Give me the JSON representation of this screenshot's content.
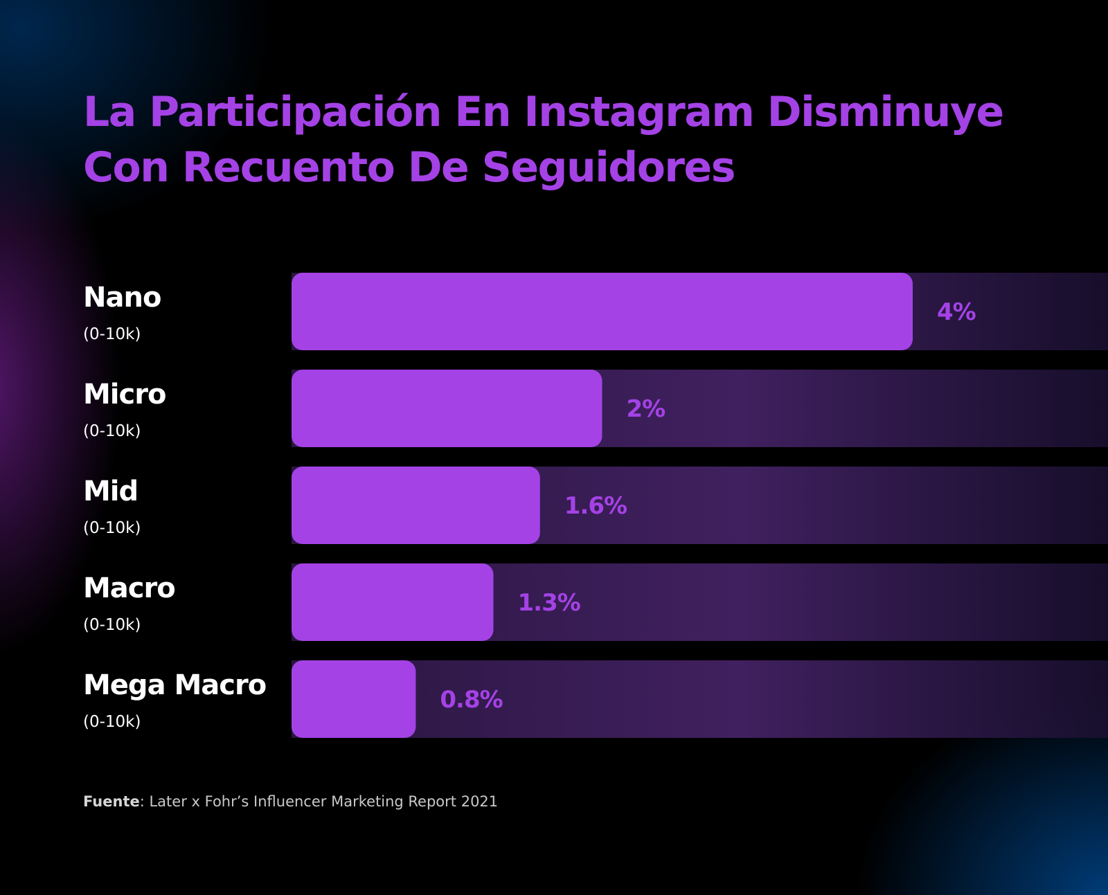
{
  "title_lines": [
    "La Participación En Instagram Disminuye",
    "Con Recuento De Seguidores"
  ],
  "source": {
    "label": "Fuente",
    "text": ": Later x Fohr’s Influencer Marketing Report 2021"
  },
  "colors": {
    "accent": "#a442e6",
    "track": "#3d1f5e",
    "label": "#ffffff"
  },
  "chart_data": {
    "type": "bar",
    "orientation": "horizontal",
    "title": "La Participación En Instagram Disminuye Con Recuento De Seguidores",
    "categories": [
      "Nano",
      "Micro",
      "Mid",
      "Macro",
      "Mega Macro"
    ],
    "subcategories": [
      "(0-10k)",
      "(0-10k)",
      "(0-10k)",
      "(0-10k)",
      "(0-10k)"
    ],
    "values": [
      4,
      2,
      1.6,
      1.3,
      0.8
    ],
    "value_labels": [
      "4%",
      "2%",
      "1.6%",
      "1.3%",
      "0.8%"
    ],
    "unit": "%",
    "xlim": [
      0,
      5
    ],
    "xlabel": "",
    "ylabel": "",
    "grid": false,
    "legend": "none"
  }
}
